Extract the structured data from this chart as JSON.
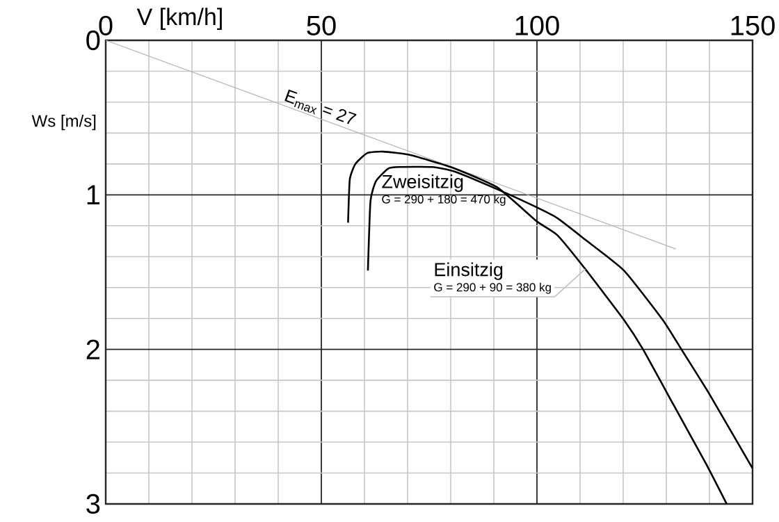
{
  "chart_data": {
    "type": "line",
    "xlabel": "V [km/h]",
    "ylabel": "Ws [m/s]",
    "xlim": [
      0,
      150
    ],
    "ylim": [
      3,
      0
    ],
    "xticks": [
      0,
      {
        "value": 10,
        "label": null
      },
      {
        "value": 20,
        "label": null
      },
      {
        "value": 30,
        "label": null
      },
      {
        "value": 40,
        "label": null
      },
      50,
      {
        "value": 60,
        "label": null
      },
      {
        "value": 70,
        "label": null
      },
      {
        "value": 80,
        "label": null
      },
      {
        "value": 90,
        "label": null
      },
      100,
      {
        "value": 110,
        "label": null
      },
      {
        "value": 120,
        "label": null
      },
      {
        "value": 130,
        "label": null
      },
      {
        "value": 140,
        "label": null
      },
      150
    ],
    "yticks": [
      0,
      {
        "value": 0.2,
        "label": null
      },
      {
        "value": 0.4,
        "label": null
      },
      {
        "value": 0.6,
        "label": null
      },
      {
        "value": 0.8,
        "label": null
      },
      1,
      {
        "value": 1.2,
        "label": null
      },
      {
        "value": 1.4,
        "label": null
      },
      {
        "value": 1.6,
        "label": null
      },
      {
        "value": 1.8,
        "label": null
      },
      2,
      {
        "value": 2.2,
        "label": null
      },
      {
        "value": 2.4,
        "label": null
      },
      {
        "value": 2.6,
        "label": null
      },
      {
        "value": 2.8,
        "label": null
      },
      3
    ],
    "grid": true,
    "series": [
      {
        "type": "line",
        "color": "#b3b3b3",
        "x": [
          0,
          132.2
        ],
        "values": [
          0,
          1.35
        ]
      },
      {
        "name": "Einsitzig",
        "color": "#000000",
        "x": [
          56.2,
          56.6,
          57.9,
          60.6,
          64.3,
          70.3,
          80,
          90.7,
          99.9,
          104.7,
          111.2,
          120.2,
          124.6,
          131.7,
          139.2,
          144
        ],
        "values": [
          1.18,
          0.9,
          0.8,
          0.73,
          0.72,
          0.74,
          0.82,
          0.95,
          1.17,
          1.26,
          1.48,
          1.81,
          2.0,
          2.36,
          2.74,
          3.0
        ]
      },
      {
        "name": "Zweisitzig",
        "color": "#000000",
        "x": [
          60.8,
          61.4,
          62.7,
          65.5,
          68,
          75.6,
          81,
          91.3,
          99.9,
          104.7,
          111.2,
          120.2,
          129.2,
          133.5,
          140,
          150
        ],
        "values": [
          1.49,
          1.04,
          0.91,
          0.83,
          0.82,
          0.82,
          0.85,
          0.97,
          1.08,
          1.15,
          1.29,
          1.49,
          1.81,
          2.0,
          2.29,
          2.77
        ]
      }
    ],
    "annotations": [
      "E$_{max}$ = 27",
      {
        "text": "G = 290 + 90 = 380 kg",
        "x": 111.2,
        "y": 1.48
      },
      {
        "text": "G = 290 + 180 = 470 kg",
        "x": 65.5,
        "y": 0.83
      }
    ]
  }
}
